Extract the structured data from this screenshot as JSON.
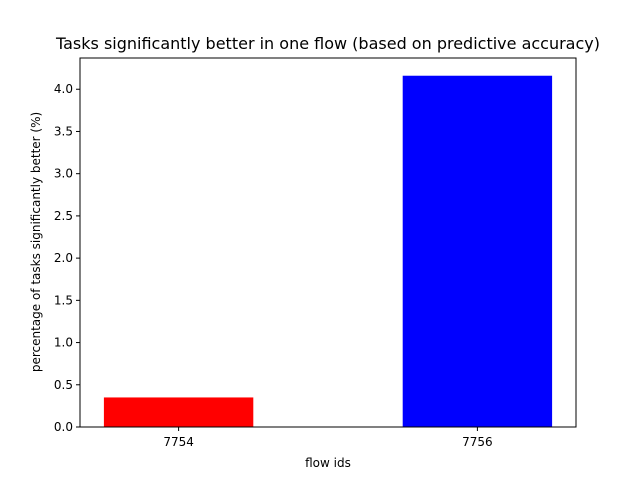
{
  "chart_data": {
    "type": "bar",
    "title": "Tasks significantly better in one flow (based on predictive accuracy)",
    "xlabel": "flow ids",
    "ylabel": "percentage of tasks significantly better (%)",
    "categories": [
      "7754",
      "7756"
    ],
    "values": [
      0.35,
      4.16
    ],
    "bar_colors": [
      "#ff0000",
      "#0000ff"
    ],
    "ylim": [
      0,
      4.37
    ],
    "yticks": [
      0.0,
      0.5,
      1.0,
      1.5,
      2.0,
      2.5,
      3.0,
      3.5,
      4.0
    ],
    "ytick_labels": [
      "0.0",
      "0.5",
      "1.0",
      "1.5",
      "2.0",
      "2.5",
      "3.0",
      "3.5",
      "4.0"
    ],
    "grid": false,
    "legend": "none"
  }
}
